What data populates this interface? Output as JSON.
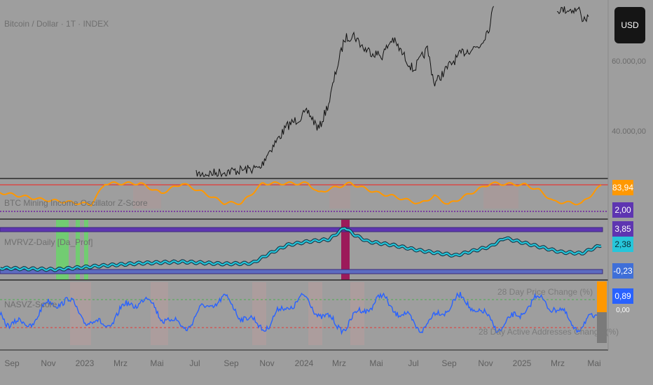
{
  "header": {
    "symbol_title": "Bitcoin / Dollar · 1T · INDEX",
    "currency_button": "USD"
  },
  "price_axis": {
    "labels": [
      "60.000,00",
      "40.000,00"
    ]
  },
  "panes": {
    "mining": {
      "title": "BTC Mining Income Oscillator Z-Score",
      "tags": [
        {
          "value": "83,94",
          "color": "#ff9800"
        },
        {
          "value": "2,00",
          "color": "#5e35b1"
        }
      ]
    },
    "mvrv": {
      "title": "MVRVZ-Daily [Da_Prof]",
      "tags": [
        {
          "value": "3,85",
          "color": "#5e35b1"
        },
        {
          "value": "2,38",
          "color": "#26c6da"
        },
        {
          "value": "-0,23",
          "color": "#3f6fd8"
        }
      ]
    },
    "nvt": {
      "title": "NASVZ-Score",
      "legend": [
        "28 Day Price Change (%)",
        "28 Day Active Addresses Change (%)"
      ],
      "tags": [
        {
          "value": "0,89",
          "color": "#2962ff"
        },
        {
          "value": "0,00",
          "color": "#9e9e9e"
        }
      ]
    }
  },
  "time_axis": {
    "labels": [
      "Sep",
      "Nov",
      "2023",
      "Mrz",
      "Mai",
      "Jul",
      "Sep",
      "Nov",
      "2024",
      "Mrz",
      "Mai",
      "Jul",
      "Sep",
      "Nov",
      "2025",
      "Mrz",
      "Mai"
    ]
  },
  "colors": {
    "background": "#9e9e9e",
    "price_line": "#111111",
    "mining_line": "#ff9800",
    "mvrv_line": "#26c6da",
    "mvrv_bands": "#5e35b1",
    "nvt_line": "#2962ff",
    "upper_threshold": "#e53935",
    "lower_threshold": "#4caf50"
  }
}
